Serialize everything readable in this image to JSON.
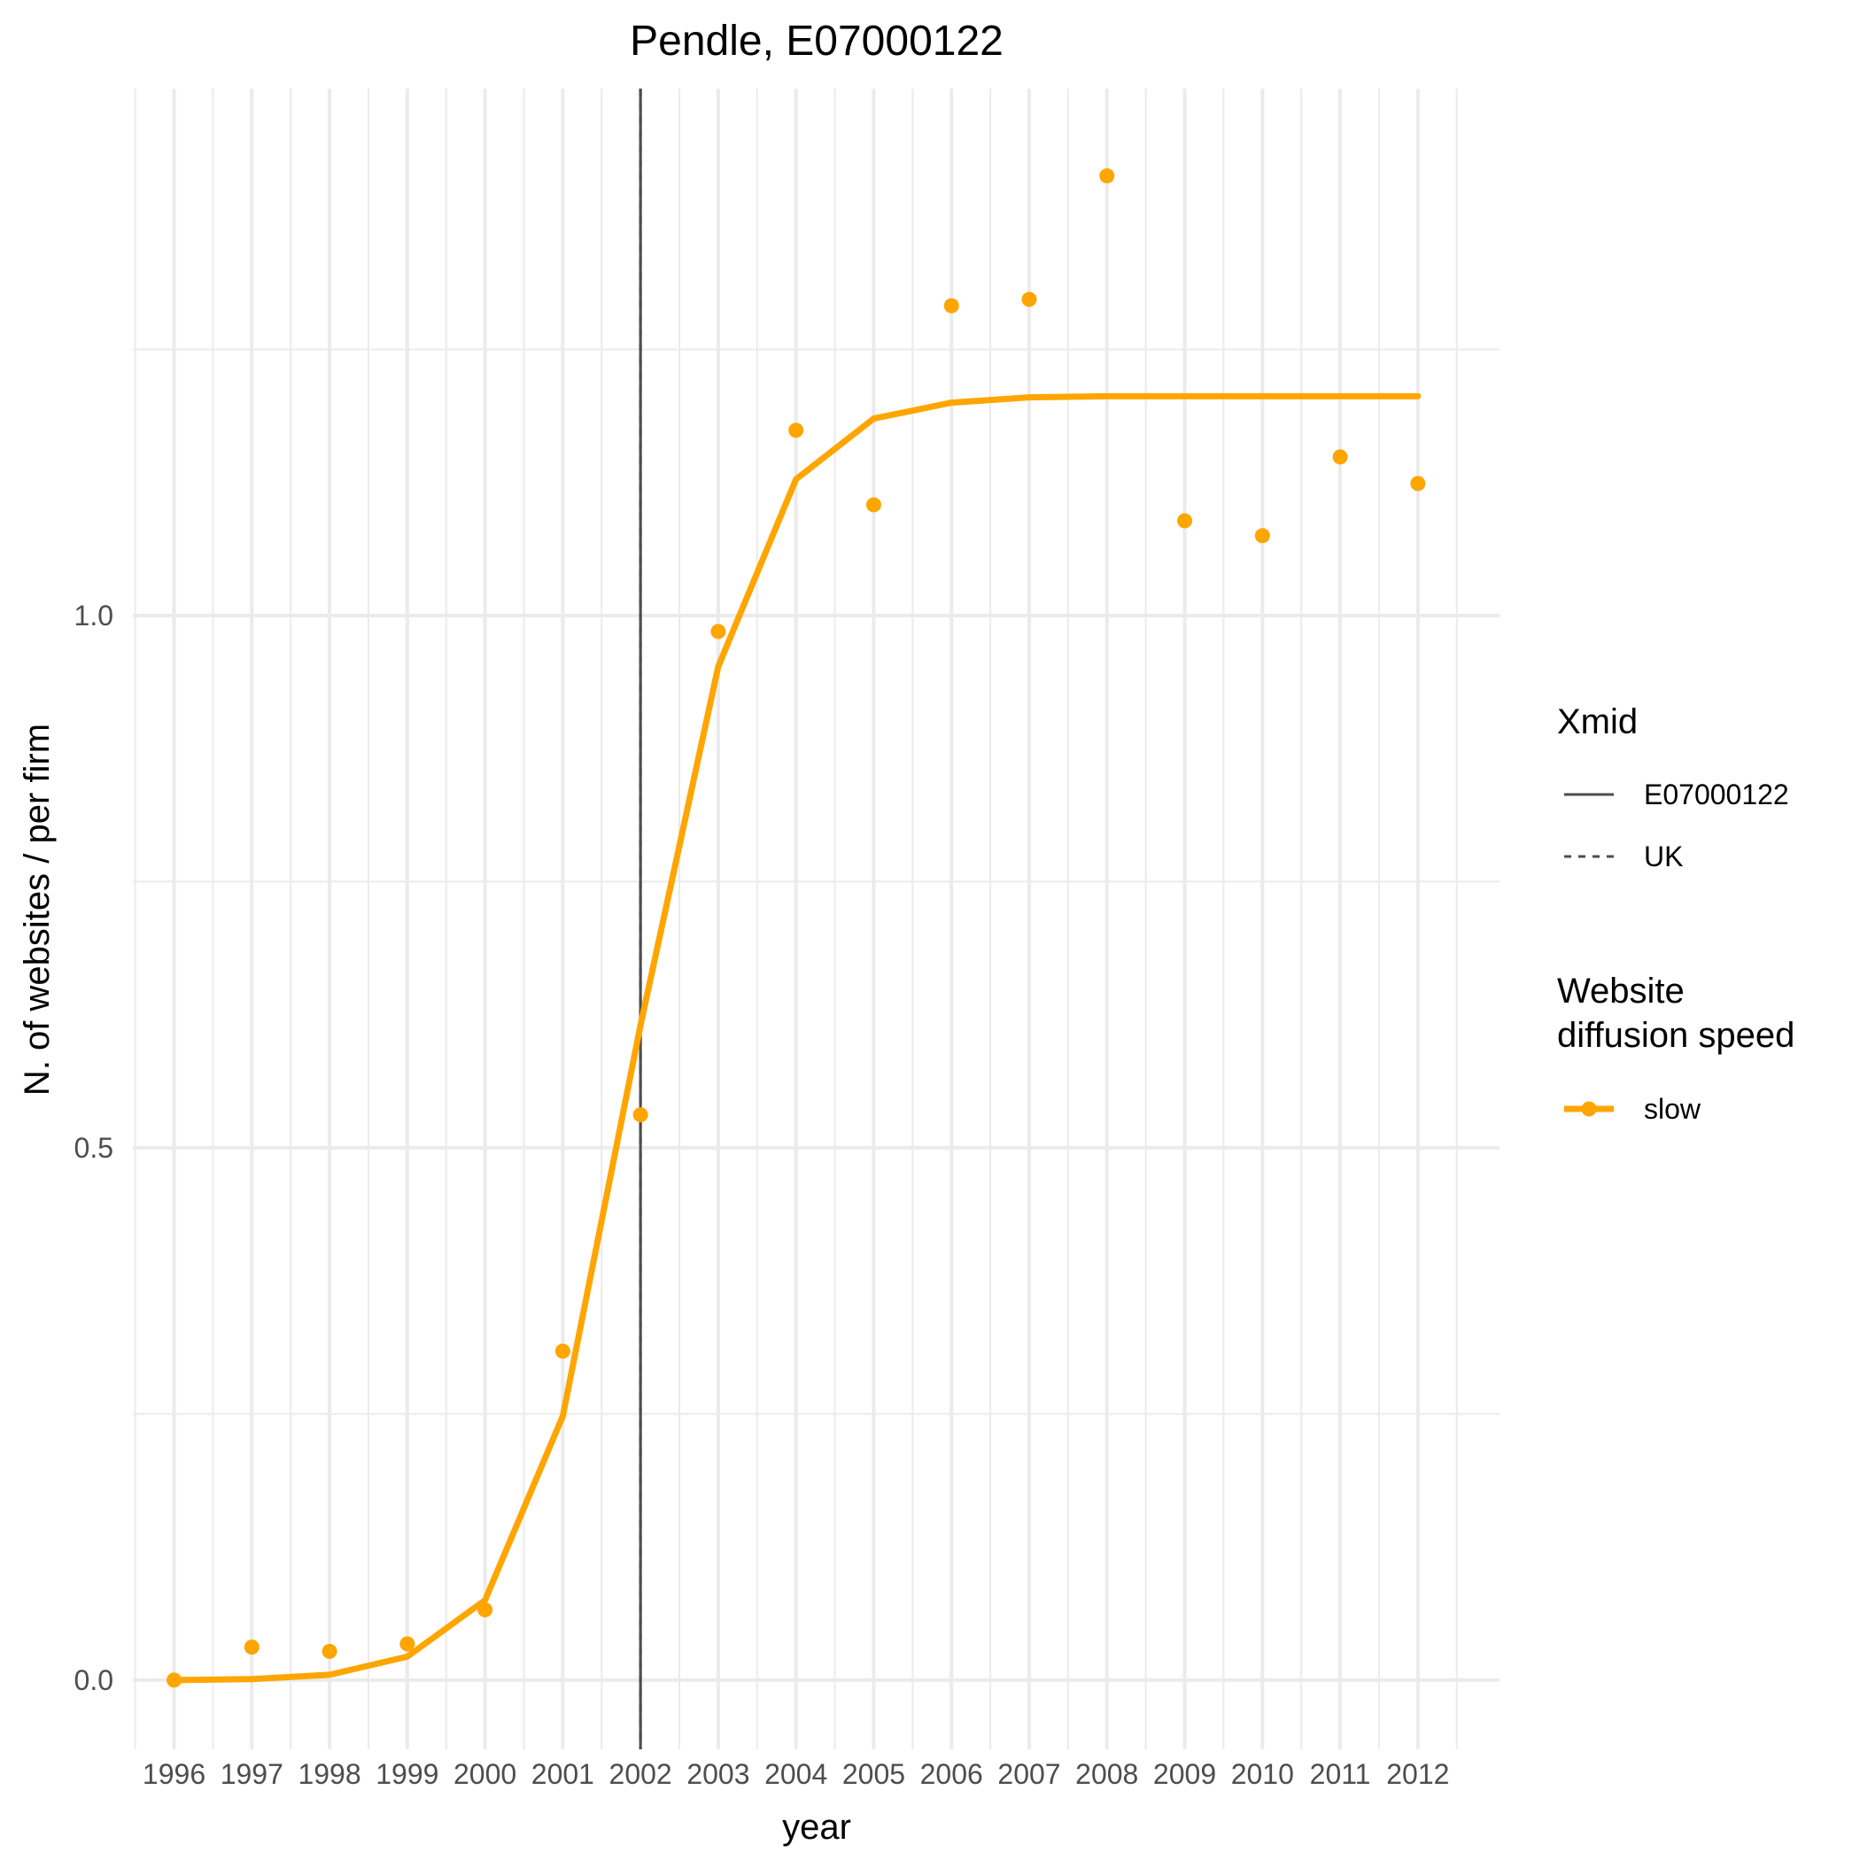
{
  "chart_data": {
    "type": "line",
    "title": "Pendle, E07000122",
    "xlabel": "year",
    "ylabel": "N. of websites / per firm",
    "x": [
      1996,
      1997,
      1998,
      1999,
      2000,
      2001,
      2002,
      2003,
      2004,
      2005,
      2006,
      2007,
      2008,
      2009,
      2010,
      2011,
      2012
    ],
    "x_tick_labels": [
      "1996",
      "1997",
      "1998",
      "1999",
      "2000",
      "2001",
      "2002",
      "2003",
      "2004",
      "2005",
      "2006",
      "2007",
      "2008",
      "2009",
      "2010",
      "2011",
      "2012"
    ],
    "y_ticks": [
      0.0,
      0.5,
      1.0
    ],
    "y_tick_labels": [
      "0.0",
      "0.5",
      "1.0"
    ],
    "xlim": [
      1995.47,
      2013.05
    ],
    "ylim": [
      -0.065,
      1.495
    ],
    "grid": true,
    "series": [
      {
        "name": "slow",
        "kind": "fitted-line",
        "color": "#FFA500",
        "values": [
          0.0,
          0.001,
          0.005,
          0.022,
          0.075,
          0.248,
          0.615,
          0.952,
          1.128,
          1.185,
          1.2,
          1.205,
          1.206,
          1.206,
          1.206,
          1.206,
          1.206
        ]
      },
      {
        "name": "slow",
        "kind": "points",
        "color": "#FFA500",
        "values": [
          0.0,
          0.031,
          0.027,
          0.034,
          0.066,
          0.309,
          0.531,
          0.985,
          1.174,
          1.104,
          1.291,
          1.297,
          1.413,
          1.089,
          1.075,
          1.149,
          1.124
        ]
      }
    ],
    "vlines": [
      {
        "x": 2002,
        "style": "solid",
        "legend": "E07000122",
        "color": "#4d4d4d"
      },
      {
        "x": 2002,
        "style": "dashed",
        "legend": "UK",
        "color": "#4d4d4d"
      }
    ],
    "legend": {
      "placement": "right",
      "groups": [
        {
          "title": "Xmid",
          "items": [
            {
              "label": "E07000122",
              "style": "solid"
            },
            {
              "label": "UK",
              "style": "dashed"
            }
          ]
        },
        {
          "title": "Website\ndiffusion speed",
          "items": [
            {
              "label": "slow",
              "style": "line-point"
            }
          ]
        }
      ]
    }
  }
}
